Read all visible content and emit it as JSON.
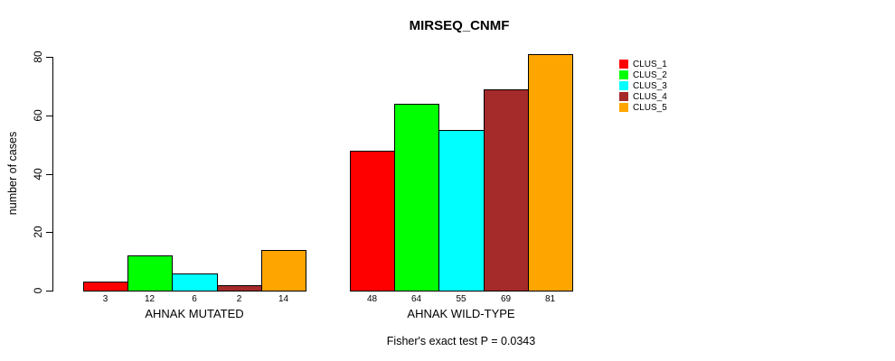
{
  "chart_data": {
    "type": "bar",
    "title": "MIRSEQ_CNMF",
    "ylabel": "number of cases",
    "xlabel": "",
    "ylim": [
      0,
      83
    ],
    "yticks": [
      0,
      20,
      40,
      60,
      80
    ],
    "grid": false,
    "legend_position": "right",
    "bar_value_labels": true,
    "categories": [
      "AHNAK MUTATED",
      "AHNAK WILD-TYPE"
    ],
    "series": [
      {
        "name": "CLUS_1",
        "color": "#ff0000",
        "values": [
          3,
          48
        ]
      },
      {
        "name": "CLUS_2",
        "color": "#00ff00",
        "values": [
          12,
          64
        ]
      },
      {
        "name": "CLUS_3",
        "color": "#00ffff",
        "values": [
          6,
          55
        ]
      },
      {
        "name": "CLUS_4",
        "color": "#a52a2a",
        "values": [
          2,
          69
        ]
      },
      {
        "name": "CLUS_5",
        "color": "#ffa500",
        "values": [
          14,
          81
        ]
      }
    ],
    "annotation": "Fisher's exact test P = 0.0343",
    "colors": {
      "axis": "#000000",
      "text": "#000000",
      "background": "#ffffff"
    }
  }
}
